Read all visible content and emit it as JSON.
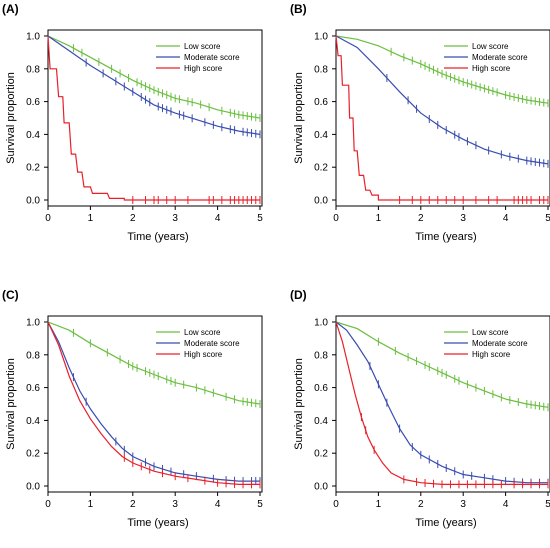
{
  "colors": {
    "low": "#6abf3f",
    "moderate": "#3a4db0",
    "high": "#e8202a",
    "axis": "#000000"
  },
  "chart_data": [
    {
      "type": "line",
      "panel_label": "(A)",
      "xlabel": "Time (years)",
      "ylabel": "Survival proportion",
      "xlim": [
        0,
        5
      ],
      "ylim": [
        0,
        1
      ],
      "xticks": [
        "0",
        "1",
        "2",
        "3",
        "4",
        "5"
      ],
      "yticks": [
        "0.0",
        "0.2",
        "0.4",
        "0.6",
        "0.8",
        "1.0"
      ],
      "legend_position": "top-right",
      "series": [
        {
          "name": "Low score",
          "color_key": "low",
          "step": false,
          "points": [
            [
              0,
              1
            ],
            [
              0.5,
              0.94
            ],
            [
              1,
              0.87
            ],
            [
              1.5,
              0.8
            ],
            [
              2,
              0.73
            ],
            [
              2.5,
              0.67
            ],
            [
              3,
              0.62
            ],
            [
              3.5,
              0.59
            ],
            [
              4,
              0.55
            ],
            [
              4.5,
              0.52
            ],
            [
              5,
              0.5
            ]
          ],
          "censor": [
            0.6,
            0.8,
            1.2,
            1.5,
            1.7,
            1.9,
            2.1,
            2.2,
            2.3,
            2.4,
            2.5,
            2.6,
            2.7,
            2.8,
            2.9,
            3.0,
            3.1,
            3.3,
            3.4,
            3.6,
            3.8,
            4.1,
            4.3,
            4.4,
            4.5,
            4.6,
            4.7,
            4.8,
            4.9,
            5.0
          ]
        },
        {
          "name": "Moderate score",
          "color_key": "moderate",
          "step": false,
          "points": [
            [
              0,
              1
            ],
            [
              0.5,
              0.91
            ],
            [
              1,
              0.82
            ],
            [
              1.5,
              0.74
            ],
            [
              2,
              0.66
            ],
            [
              2.5,
              0.58
            ],
            [
              3,
              0.53
            ],
            [
              3.5,
              0.49
            ],
            [
              4,
              0.45
            ],
            [
              4.5,
              0.42
            ],
            [
              5,
              0.4
            ]
          ],
          "censor": [
            0.9,
            1.3,
            1.6,
            1.8,
            2.0,
            2.2,
            2.3,
            2.4,
            2.6,
            2.7,
            2.8,
            2.9,
            3.1,
            3.2,
            3.4,
            3.7,
            3.9,
            4.1,
            4.3,
            4.4,
            4.6,
            4.7,
            4.8,
            4.9,
            5.0
          ]
        },
        {
          "name": "High score",
          "color_key": "high",
          "step": true,
          "points": [
            [
              0,
              1
            ],
            [
              0.05,
              0.8
            ],
            [
              0.2,
              0.8
            ],
            [
              0.25,
              0.63
            ],
            [
              0.35,
              0.63
            ],
            [
              0.38,
              0.47
            ],
            [
              0.5,
              0.47
            ],
            [
              0.55,
              0.28
            ],
            [
              0.65,
              0.28
            ],
            [
              0.7,
              0.17
            ],
            [
              0.8,
              0.17
            ],
            [
              0.85,
              0.08
            ],
            [
              1.0,
              0.08
            ],
            [
              1.05,
              0.04
            ],
            [
              1.4,
              0.04
            ],
            [
              1.45,
              0.01
            ],
            [
              1.8,
              0.01
            ],
            [
              1.8,
              0
            ],
            [
              5,
              0
            ]
          ],
          "censor": [
            2.0,
            2.3,
            2.5,
            2.6,
            2.8,
            3.0,
            3.3,
            3.8,
            3.9,
            4.1,
            4.3,
            4.4,
            4.5,
            4.6,
            4.7,
            4.8,
            4.9,
            5.0
          ]
        }
      ]
    },
    {
      "type": "line",
      "panel_label": "(B)",
      "xlabel": "Time (years)",
      "ylabel": "Survival proportion",
      "xlim": [
        0,
        5
      ],
      "ylim": [
        0,
        1
      ],
      "xticks": [
        "0",
        "1",
        "2",
        "3",
        "4",
        "5"
      ],
      "yticks": [
        "0.0",
        "0.2",
        "0.4",
        "0.6",
        "0.8",
        "1.0"
      ],
      "legend_position": "top-right",
      "series": [
        {
          "name": "Low score",
          "color_key": "low",
          "step": false,
          "points": [
            [
              0,
              1
            ],
            [
              0.5,
              0.98
            ],
            [
              1,
              0.94
            ],
            [
              1.5,
              0.88
            ],
            [
              2,
              0.83
            ],
            [
              2.5,
              0.77
            ],
            [
              3,
              0.72
            ],
            [
              3.5,
              0.68
            ],
            [
              4,
              0.64
            ],
            [
              4.5,
              0.61
            ],
            [
              5,
              0.59
            ]
          ],
          "censor": [
            1.3,
            1.6,
            1.8,
            2.0,
            2.1,
            2.2,
            2.3,
            2.4,
            2.5,
            2.6,
            2.7,
            2.8,
            2.9,
            3.0,
            3.1,
            3.2,
            3.3,
            3.4,
            3.5,
            3.6,
            3.7,
            3.8,
            4.0,
            4.1,
            4.2,
            4.3,
            4.4,
            4.5,
            4.6,
            4.7,
            4.8,
            4.9,
            5.0
          ]
        },
        {
          "name": "Moderate score",
          "color_key": "moderate",
          "step": false,
          "points": [
            [
              0,
              1
            ],
            [
              0.5,
              0.93
            ],
            [
              1,
              0.8
            ],
            [
              1.5,
              0.66
            ],
            [
              2,
              0.53
            ],
            [
              2.5,
              0.44
            ],
            [
              3,
              0.37
            ],
            [
              3.5,
              0.31
            ],
            [
              4,
              0.27
            ],
            [
              4.5,
              0.24
            ],
            [
              5,
              0.22
            ]
          ],
          "censor": [
            1.2,
            1.7,
            1.9,
            2.2,
            2.4,
            2.6,
            2.8,
            2.9,
            3.1,
            3.3,
            3.6,
            3.9,
            4.1,
            4.3,
            4.5,
            4.6,
            4.7,
            4.8,
            4.9,
            5.0
          ]
        },
        {
          "name": "High score",
          "color_key": "high",
          "step": true,
          "points": [
            [
              0,
              1
            ],
            [
              0.05,
              0.88
            ],
            [
              0.12,
              0.88
            ],
            [
              0.15,
              0.7
            ],
            [
              0.3,
              0.7
            ],
            [
              0.32,
              0.5
            ],
            [
              0.4,
              0.5
            ],
            [
              0.43,
              0.3
            ],
            [
              0.5,
              0.3
            ],
            [
              0.55,
              0.15
            ],
            [
              0.65,
              0.15
            ],
            [
              0.7,
              0.06
            ],
            [
              0.8,
              0.06
            ],
            [
              0.85,
              0.03
            ],
            [
              1.0,
              0.03
            ],
            [
              1.0,
              0
            ],
            [
              5,
              0
            ]
          ],
          "censor": [
            1.5,
            1.8,
            2.0,
            2.2,
            2.4,
            2.6,
            2.8,
            3.0,
            3.3,
            3.6,
            3.8,
            4.2,
            4.3,
            4.4,
            4.5,
            4.6,
            4.8,
            4.9,
            5.0
          ]
        }
      ]
    },
    {
      "type": "line",
      "panel_label": "(C)",
      "xlabel": "Time (years)",
      "ylabel": "Survival proportion",
      "xlim": [
        0,
        5
      ],
      "ylim": [
        0,
        1
      ],
      "xticks": [
        "0",
        "1",
        "2",
        "3",
        "4",
        "5"
      ],
      "yticks": [
        "0.0",
        "0.2",
        "0.4",
        "0.6",
        "0.8",
        "1.0"
      ],
      "legend_position": "top-right",
      "series": [
        {
          "name": "Low score",
          "color_key": "low",
          "step": false,
          "points": [
            [
              0,
              1
            ],
            [
              0.5,
              0.95
            ],
            [
              1,
              0.87
            ],
            [
              1.5,
              0.8
            ],
            [
              2,
              0.73
            ],
            [
              2.5,
              0.68
            ],
            [
              3,
              0.63
            ],
            [
              3.5,
              0.6
            ],
            [
              4,
              0.56
            ],
            [
              4.5,
              0.52
            ],
            [
              5,
              0.5
            ]
          ],
          "censor": [
            0.6,
            1.0,
            1.4,
            1.7,
            1.9,
            2.0,
            2.1,
            2.3,
            2.4,
            2.5,
            2.6,
            2.8,
            2.9,
            3.0,
            3.2,
            3.5,
            3.7,
            3.9,
            4.2,
            4.4,
            4.6,
            4.7,
            4.8,
            4.9,
            5.0
          ]
        },
        {
          "name": "Moderate score",
          "color_key": "moderate",
          "step": false,
          "points": [
            [
              0,
              1
            ],
            [
              0.25,
              0.88
            ],
            [
              0.5,
              0.72
            ],
            [
              0.75,
              0.58
            ],
            [
              1,
              0.47
            ],
            [
              1.25,
              0.38
            ],
            [
              1.5,
              0.3
            ],
            [
              1.75,
              0.23
            ],
            [
              2,
              0.18
            ],
            [
              2.5,
              0.12
            ],
            [
              3,
              0.08
            ],
            [
              3.5,
              0.06
            ],
            [
              4,
              0.04
            ],
            [
              4.5,
              0.03
            ],
            [
              5,
              0.03
            ]
          ],
          "censor": [
            0.6,
            0.9,
            1.6,
            1.8,
            2.0,
            2.3,
            2.5,
            2.7,
            2.9,
            3.2,
            3.5,
            3.9,
            4.2,
            4.4,
            4.6,
            4.8,
            4.9,
            5.0
          ]
        },
        {
          "name": "High score",
          "color_key": "high",
          "step": false,
          "points": [
            [
              0,
              1
            ],
            [
              0.25,
              0.86
            ],
            [
              0.5,
              0.67
            ],
            [
              0.75,
              0.52
            ],
            [
              1,
              0.41
            ],
            [
              1.25,
              0.32
            ],
            [
              1.5,
              0.24
            ],
            [
              1.75,
              0.18
            ],
            [
              2,
              0.14
            ],
            [
              2.5,
              0.09
            ],
            [
              3,
              0.06
            ],
            [
              3.5,
              0.04
            ],
            [
              4,
              0.02
            ],
            [
              4.5,
              0.01
            ],
            [
              5,
              0.01
            ]
          ],
          "censor": [
            1.8,
            2.0,
            2.2,
            2.4,
            2.7,
            3.0,
            3.3,
            3.7,
            4.0,
            4.2,
            4.4,
            4.6,
            4.8,
            5.0
          ]
        }
      ]
    },
    {
      "type": "line",
      "panel_label": "(D)",
      "xlabel": "Time (years)",
      "ylabel": "Survival proportion",
      "xlim": [
        0,
        5
      ],
      "ylim": [
        0,
        1
      ],
      "xticks": [
        "0",
        "1",
        "2",
        "3",
        "4",
        "5"
      ],
      "yticks": [
        "0.0",
        "0.2",
        "0.4",
        "0.6",
        "0.8",
        "1.0"
      ],
      "legend_position": "top-right",
      "series": [
        {
          "name": "Low score",
          "color_key": "low",
          "step": false,
          "points": [
            [
              0,
              1
            ],
            [
              0.5,
              0.96
            ],
            [
              1,
              0.88
            ],
            [
              1.5,
              0.81
            ],
            [
              2,
              0.75
            ],
            [
              2.5,
              0.69
            ],
            [
              3,
              0.63
            ],
            [
              3.5,
              0.58
            ],
            [
              4,
              0.53
            ],
            [
              4.5,
              0.5
            ],
            [
              5,
              0.48
            ]
          ],
          "censor": [
            1.0,
            1.4,
            1.7,
            1.9,
            2.1,
            2.2,
            2.4,
            2.5,
            2.6,
            2.8,
            2.9,
            3.1,
            3.3,
            3.5,
            3.7,
            3.9,
            4.1,
            4.3,
            4.5,
            4.6,
            4.7,
            4.8,
            4.9,
            5.0
          ]
        },
        {
          "name": "Moderate score",
          "color_key": "moderate",
          "step": false,
          "points": [
            [
              0,
              1
            ],
            [
              0.25,
              0.95
            ],
            [
              0.5,
              0.86
            ],
            [
              0.75,
              0.76
            ],
            [
              1,
              0.62
            ],
            [
              1.25,
              0.48
            ],
            [
              1.5,
              0.35
            ],
            [
              1.75,
              0.25
            ],
            [
              2,
              0.19
            ],
            [
              2.5,
              0.12
            ],
            [
              3,
              0.07
            ],
            [
              3.5,
              0.05
            ],
            [
              4,
              0.03
            ],
            [
              4.5,
              0.02
            ],
            [
              5,
              0.02
            ]
          ],
          "censor": [
            0.8,
            1.0,
            1.2,
            1.5,
            1.8,
            2.0,
            2.2,
            2.4,
            2.6,
            2.8,
            3.0,
            3.2,
            3.5,
            3.7,
            4.0,
            4.2,
            4.4,
            4.6,
            4.8,
            5.0
          ]
        },
        {
          "name": "High score",
          "color_key": "high",
          "step": false,
          "points": [
            [
              0,
              1
            ],
            [
              0.15,
              0.88
            ],
            [
              0.3,
              0.72
            ],
            [
              0.45,
              0.56
            ],
            [
              0.6,
              0.42
            ],
            [
              0.75,
              0.3
            ],
            [
              0.9,
              0.22
            ],
            [
              1.1,
              0.14
            ],
            [
              1.3,
              0.08
            ],
            [
              1.6,
              0.04
            ],
            [
              2,
              0.02
            ],
            [
              2.5,
              0.01
            ],
            [
              5,
              0.01
            ]
          ],
          "censor": [
            0.6,
            0.7,
            0.9,
            1.6,
            1.9,
            2.1,
            2.3,
            2.5,
            2.7,
            2.9,
            3.1,
            3.3,
            3.5,
            3.7,
            3.9,
            4.2,
            4.4,
            4.6,
            4.8,
            5.0
          ]
        }
      ]
    }
  ]
}
